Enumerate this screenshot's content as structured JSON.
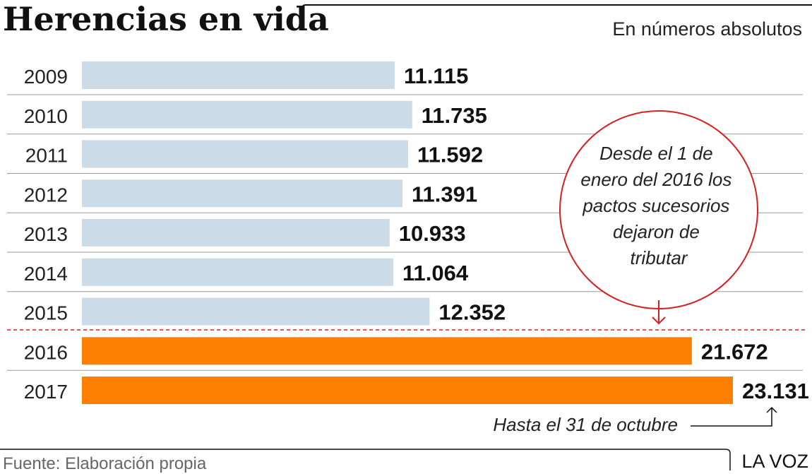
{
  "title": "Herencias en vida",
  "subtitle": "En números absolutos",
  "colors": {
    "before": "#cbdbe7",
    "after": "#ff8000",
    "accent": "#d6201e"
  },
  "chart_data": {
    "type": "bar",
    "orientation": "horizontal",
    "categories": [
      "2009",
      "2010",
      "2011",
      "2012",
      "2013",
      "2014",
      "2015",
      "2016",
      "2017"
    ],
    "values": [
      11115,
      11735,
      11592,
      11391,
      10933,
      11064,
      12352,
      21672,
      23131
    ],
    "value_labels": [
      "11.115",
      "11.735",
      "11.592",
      "11.391",
      "10.933",
      "11.064",
      "12.352",
      "21.672",
      "23.131"
    ],
    "highlight_from": "2016",
    "xlim": [
      0,
      24000
    ],
    "grid": false
  },
  "annotations": {
    "circle_lines": [
      "Desde el 1 de",
      "enero del 2016 los",
      "pactos sucesorios",
      "dejaron de",
      "tributar"
    ],
    "note_2017": "Hasta el 31 de octubre"
  },
  "footer": {
    "source": "Fuente: Elaboración propia",
    "brand": "LA VOZ"
  }
}
